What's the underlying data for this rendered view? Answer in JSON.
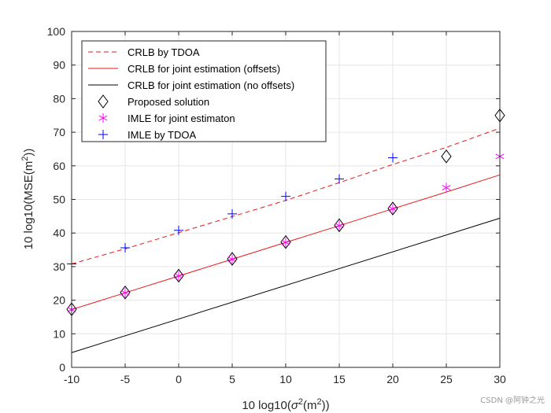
{
  "chart_data": {
    "type": "line",
    "title": "",
    "xlabel": "10 log10(σ²(m²))",
    "ylabel": "10 log10(MSE(m²))",
    "xlim": [
      -10,
      30
    ],
    "ylim": [
      0,
      100
    ],
    "xticks": [
      -10,
      -5,
      0,
      5,
      10,
      15,
      20,
      25,
      30
    ],
    "yticks": [
      0,
      10,
      20,
      30,
      40,
      50,
      60,
      70,
      80,
      90,
      100
    ],
    "grid": true,
    "legend_position": "top-left",
    "series": [
      {
        "name": "CRLB by TDOA",
        "style": "dashed-line",
        "color": "#e8191b",
        "x": [
          -10,
          -5,
          0,
          5,
          10,
          15,
          20,
          25,
          30
        ],
        "y": [
          30.8,
          35.3,
          40.1,
          44.9,
          49.7,
          55.0,
          60.4,
          65.5,
          71.2
        ]
      },
      {
        "name": "CRLB for joint estimation (offsets)",
        "style": "solid-line",
        "color": "#e8191b",
        "x": [
          -10,
          -5,
          0,
          5,
          10,
          15,
          20,
          25,
          30
        ],
        "y": [
          17.2,
          22.2,
          27.2,
          32.2,
          37.2,
          42.2,
          47.2,
          52.2,
          57.3
        ]
      },
      {
        "name": "CRLB for joint estimation (no offsets)",
        "style": "solid-line",
        "color": "#000000",
        "x": [
          -10,
          30
        ],
        "y": [
          4.4,
          44.4
        ]
      },
      {
        "name": "Proposed solution",
        "style": "diamond-marker",
        "color": "#000000",
        "x": [
          -10,
          -5,
          0,
          5,
          10,
          15,
          20,
          25,
          30
        ],
        "y": [
          17.3,
          22.3,
          27.3,
          32.3,
          37.3,
          42.3,
          47.3,
          62.8,
          75.0
        ]
      },
      {
        "name": "IMLE for joint estimaton",
        "style": "asterisk-marker",
        "color": "#ff00ff",
        "x": [
          -10,
          -5,
          0,
          5,
          10,
          15,
          20,
          25,
          30
        ],
        "y": [
          17.2,
          22.2,
          27.2,
          32.2,
          37.2,
          42.2,
          47.2,
          53.5,
          62.8
        ]
      },
      {
        "name": "IMLE by TDOA",
        "style": "plus-marker",
        "color": "#0000ff",
        "x": [
          -10,
          -5,
          0,
          5,
          10,
          15,
          20
        ],
        "y": [
          30.8,
          35.6,
          40.8,
          45.7,
          50.9,
          56.1,
          62.4
        ]
      }
    ]
  },
  "watermark": "CSDN @阿钟之光",
  "colors": {
    "axis": "#262626",
    "grid": "#e6e6e6",
    "background": "#ffffff"
  }
}
